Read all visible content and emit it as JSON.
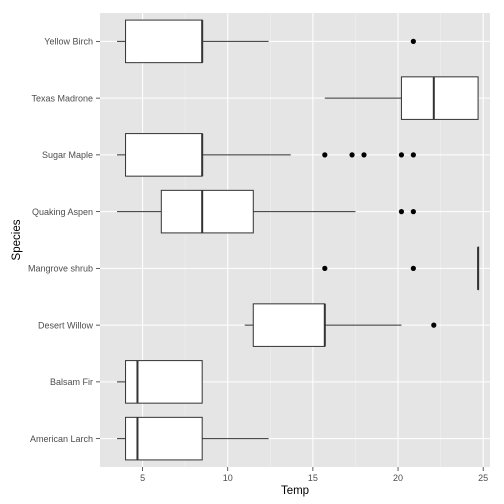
{
  "chart_data": {
    "type": "boxplot",
    "xlabel": "Temp",
    "ylabel": "Species",
    "xlim": [
      2.5,
      25.4
    ],
    "x_ticks": [
      5,
      10,
      15,
      20,
      25
    ],
    "grid": true,
    "colors": {
      "panel": "#e5e5e5",
      "grid_major": "#ffffff",
      "grid_minor": "#f0f0f0",
      "box_fill": "#ffffff",
      "box_stroke": "#333333",
      "point": "#000000"
    },
    "categories": [
      "American Larch",
      "Balsam Fir",
      "Desert Willow",
      "Mangrove shrub",
      "Quaking Aspen",
      "Sugar Maple",
      "Texas Madrone",
      "Yellow Birch"
    ],
    "boxes": [
      {
        "species": "American Larch",
        "whisker_low": 3.5,
        "q1": 4.0,
        "median": 4.7,
        "q3": 8.5,
        "whisker_high": 12.4,
        "outliers": []
      },
      {
        "species": "Balsam Fir",
        "whisker_low": 3.5,
        "q1": 4.0,
        "median": 4.7,
        "q3": 8.5,
        "whisker_high": 8.5,
        "outliers": []
      },
      {
        "species": "Desert Willow",
        "whisker_low": 11.0,
        "q1": 11.5,
        "median": 15.7,
        "q3": 15.7,
        "whisker_high": 20.2,
        "outliers": [
          22.1
        ]
      },
      {
        "species": "Mangrove shrub",
        "whisker_low": 24.7,
        "q1": 24.7,
        "median": 24.7,
        "q3": 24.7,
        "whisker_high": 24.7,
        "outliers": [
          15.7,
          20.9
        ]
      },
      {
        "species": "Quaking Aspen",
        "whisker_low": 3.5,
        "q1": 6.1,
        "median": 8.5,
        "q3": 11.5,
        "whisker_high": 17.5,
        "outliers": [
          20.2,
          20.9
        ]
      },
      {
        "species": "Sugar Maple",
        "whisker_low": 3.5,
        "q1": 4.0,
        "median": 8.5,
        "q3": 8.5,
        "whisker_high": 13.7,
        "outliers": [
          15.7,
          17.3,
          18.0,
          20.2,
          20.9
        ]
      },
      {
        "species": "Texas Madrone",
        "whisker_low": 15.7,
        "q1": 20.2,
        "median": 22.1,
        "q3": 24.7,
        "whisker_high": 24.7,
        "outliers": []
      },
      {
        "species": "Yellow Birch",
        "whisker_low": 3.5,
        "q1": 4.0,
        "median": 8.5,
        "q3": 8.5,
        "whisker_high": 12.4,
        "outliers": [
          20.9
        ]
      }
    ]
  }
}
